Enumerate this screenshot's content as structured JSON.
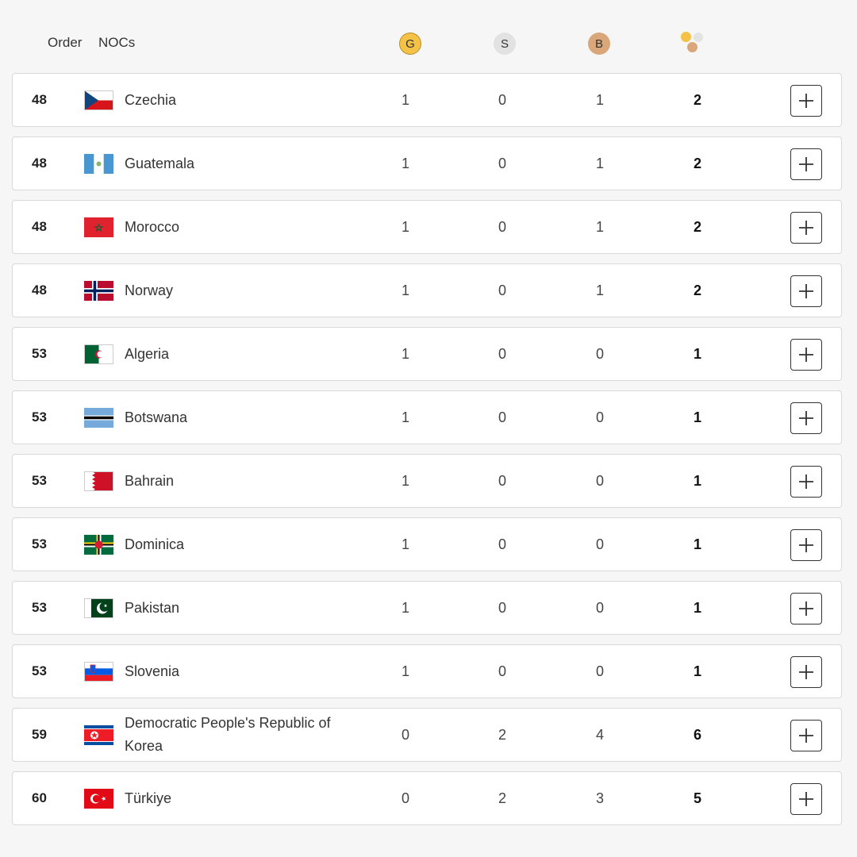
{
  "header": {
    "order_label": "Order",
    "nocs_label": "NOCs",
    "gold_label": "G",
    "silver_label": "S",
    "bronze_label": "B",
    "total_icon": "total-medals-icon"
  },
  "rows": [
    {
      "rank": "48",
      "name": "Czechia",
      "flag": "czechia-flag",
      "gold": "1",
      "silver": "0",
      "bronze": "1",
      "total": "2"
    },
    {
      "rank": "48",
      "name": "Guatemala",
      "flag": "guatemala-flag",
      "gold": "1",
      "silver": "0",
      "bronze": "1",
      "total": "2"
    },
    {
      "rank": "48",
      "name": "Morocco",
      "flag": "morocco-flag",
      "gold": "1",
      "silver": "0",
      "bronze": "1",
      "total": "2"
    },
    {
      "rank": "48",
      "name": "Norway",
      "flag": "norway-flag",
      "gold": "1",
      "silver": "0",
      "bronze": "1",
      "total": "2"
    },
    {
      "rank": "53",
      "name": "Algeria",
      "flag": "algeria-flag",
      "gold": "1",
      "silver": "0",
      "bronze": "0",
      "total": "1"
    },
    {
      "rank": "53",
      "name": "Botswana",
      "flag": "botswana-flag",
      "gold": "1",
      "silver": "0",
      "bronze": "0",
      "total": "1"
    },
    {
      "rank": "53",
      "name": "Bahrain",
      "flag": "bahrain-flag",
      "gold": "1",
      "silver": "0",
      "bronze": "0",
      "total": "1"
    },
    {
      "rank": "53",
      "name": "Dominica",
      "flag": "dominica-flag",
      "gold": "1",
      "silver": "0",
      "bronze": "0",
      "total": "1"
    },
    {
      "rank": "53",
      "name": "Pakistan",
      "flag": "pakistan-flag",
      "gold": "1",
      "silver": "0",
      "bronze": "0",
      "total": "1"
    },
    {
      "rank": "53",
      "name": "Slovenia",
      "flag": "slovenia-flag",
      "gold": "1",
      "silver": "0",
      "bronze": "0",
      "total": "1"
    },
    {
      "rank": "59",
      "name": "Democratic People's Republic of Korea",
      "flag": "dprk-flag",
      "gold": "0",
      "silver": "2",
      "bronze": "4",
      "total": "6"
    },
    {
      "rank": "60",
      "name": "Türkiye",
      "flag": "turkiye-flag",
      "gold": "0",
      "silver": "2",
      "bronze": "3",
      "total": "5"
    }
  ],
  "colors": {
    "gold": "#f4c246",
    "silver": "#e2e2e2",
    "bronze": "#d9a77a"
  }
}
